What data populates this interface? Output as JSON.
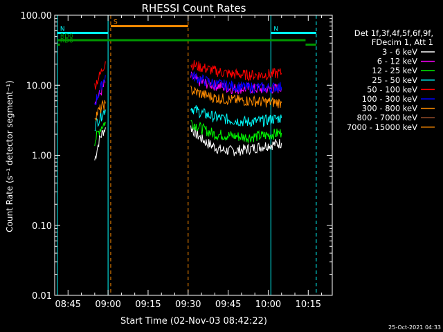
{
  "chart_data": {
    "type": "line",
    "title": "RHESSI Count Rates",
    "xlabel": "Start Time (02-Nov-03 08:42:22)",
    "ylabel": "Count Rate (s⁻¹ detector segment⁻¹)",
    "yscale": "log",
    "ylim": [
      0.01,
      100
    ],
    "x_unit": "HH:MM on 02-Nov-2003",
    "xlim": [
      "08:40",
      "10:24"
    ],
    "x_ticks": [
      "08:45",
      "09:00",
      "09:15",
      "09:30",
      "09:45",
      "10:00",
      "10:15"
    ],
    "y_ticks": [
      "0.01",
      "0.10",
      "1.00",
      "10.00",
      "100.00"
    ],
    "legend_header": [
      "Det 1f,3f,4f,5f,6f,9f,",
      "FDecim 1, Att 1"
    ],
    "legend_position": "right",
    "grid": false,
    "series": [
      {
        "name": "3 - 6 keV",
        "color": "#ffffff",
        "points": [
          [
            "08:55",
            0.85
          ],
          [
            "08:56",
            1.3
          ],
          [
            "08:57",
            1.8
          ],
          [
            "08:59",
            2.5
          ],
          [
            "09:31",
            2.5
          ],
          [
            "09:33",
            2.0
          ],
          [
            "09:37",
            1.5
          ],
          [
            "09:42",
            1.2
          ],
          [
            "09:46",
            1.15
          ],
          [
            "09:51",
            1.2
          ],
          [
            "09:56",
            1.3
          ],
          [
            "10:00",
            1.4
          ],
          [
            "10:03",
            1.45
          ],
          [
            "10:05",
            1.5
          ]
        ]
      },
      {
        "name": "6 - 12 keV",
        "color": "#ff00ff",
        "points": [
          [
            "08:55",
            6
          ],
          [
            "08:57",
            7.5
          ],
          [
            "08:59",
            11
          ],
          [
            "09:31",
            13
          ],
          [
            "09:35",
            11
          ],
          [
            "09:40",
            10
          ],
          [
            "09:46",
            9
          ],
          [
            "09:52",
            9
          ],
          [
            "09:58",
            8.8
          ],
          [
            "10:02",
            9
          ],
          [
            "10:05",
            9
          ]
        ]
      },
      {
        "name": "12 - 25 keV",
        "color": "#00ff00",
        "points": [
          [
            "08:55",
            1.6
          ],
          [
            "08:57",
            2.4
          ],
          [
            "08:59",
            3.0
          ],
          [
            "09:31",
            3.0
          ],
          [
            "09:35",
            2.4
          ],
          [
            "09:40",
            2.0
          ],
          [
            "09:46",
            1.9
          ],
          [
            "09:52",
            1.8
          ],
          [
            "09:58",
            1.9
          ],
          [
            "10:02",
            2.0
          ],
          [
            "10:05",
            2.1
          ]
        ]
      },
      {
        "name": "25 - 50 keV",
        "color": "#00ffff",
        "points": [
          [
            "08:55",
            2.6
          ],
          [
            "08:57",
            3.5
          ],
          [
            "08:59",
            4.5
          ],
          [
            "09:31",
            4.8
          ],
          [
            "09:35",
            4.0
          ],
          [
            "09:40",
            3.5
          ],
          [
            "09:46",
            3.2
          ],
          [
            "09:52",
            3.0
          ],
          [
            "09:58",
            3.1
          ],
          [
            "10:02",
            3.3
          ],
          [
            "10:05",
            3.4
          ]
        ]
      },
      {
        "name": "50 - 100 keV",
        "color": "#ff0000",
        "points": [
          [
            "08:55",
            10
          ],
          [
            "08:57",
            14
          ],
          [
            "08:59",
            22
          ],
          [
            "09:31",
            20
          ],
          [
            "09:35",
            18
          ],
          [
            "09:40",
            16
          ],
          [
            "09:46",
            14.5
          ],
          [
            "09:52",
            14
          ],
          [
            "09:58",
            14
          ],
          [
            "10:02",
            14.5
          ],
          [
            "10:05",
            15
          ]
        ]
      },
      {
        "name": "100 - 300 keV",
        "color": "#0000ff",
        "points": [
          [
            "08:55",
            5.5
          ],
          [
            "08:57",
            8.5
          ],
          [
            "08:59",
            14
          ],
          [
            "09:31",
            14
          ],
          [
            "09:35",
            12
          ],
          [
            "09:40",
            10.5
          ],
          [
            "09:46",
            9.8
          ],
          [
            "09:52",
            9.3
          ],
          [
            "09:58",
            9.2
          ],
          [
            "10:02",
            9.3
          ],
          [
            "10:05",
            9.5
          ]
        ]
      },
      {
        "name": "300 - 800 keV",
        "color": "#ff8c00",
        "points": [
          [
            "08:55",
            3.6
          ],
          [
            "08:57",
            4.5
          ],
          [
            "08:59",
            5.5
          ],
          [
            "09:31",
            8.5
          ],
          [
            "09:35",
            7.5
          ],
          [
            "09:40",
            6.6
          ],
          [
            "09:46",
            6.2
          ],
          [
            "09:52",
            6.0
          ],
          [
            "09:58",
            5.8
          ],
          [
            "10:02",
            5.7
          ],
          [
            "10:05",
            5.6
          ]
        ]
      },
      {
        "name": "800 - 7000 keV",
        "color": "#a0522d",
        "points": []
      },
      {
        "name": "7000 - 15000 keV",
        "color": "#ff8c00",
        "points": []
      }
    ],
    "annotations": [
      {
        "label": "S",
        "color": "#ff8c00",
        "x_range": [
          "09:01",
          "09:30"
        ],
        "level": 70
      },
      {
        "label": "N",
        "color": "#00ffff",
        "x_range": [
          "08:41",
          "09:00"
        ],
        "level": 56
      },
      {
        "label": "N",
        "color": "#00ffff",
        "x_range": [
          "10:01",
          "10:18"
        ],
        "level": 56
      },
      {
        "label": "RD0",
        "color": "#009900",
        "x_range": [
          "08:41",
          "10:14"
        ],
        "level": 44
      },
      {
        "label": "RD6",
        "color": "#009900",
        "x_range": [
          "08:41",
          "08:42"
        ],
        "level": 38
      },
      {
        "label": "",
        "color": "#009900",
        "x_range": [
          "10:14",
          "10:18"
        ],
        "level": 38
      }
    ],
    "vertical_markers": [
      {
        "x": "08:41",
        "color": "#00ffff",
        "dash": false
      },
      {
        "x": "09:00",
        "color": "#00ffff",
        "dash": false
      },
      {
        "x": "09:01",
        "color": "#ff8c00",
        "dash": true
      },
      {
        "x": "09:30",
        "color": "#ff8c00",
        "dash": true
      },
      {
        "x": "10:01",
        "color": "#00ffff",
        "dash": false
      },
      {
        "x": "10:18",
        "color": "#00ffff",
        "dash": true
      }
    ],
    "footer_timestamp": "25-Oct-2021 04:33"
  }
}
